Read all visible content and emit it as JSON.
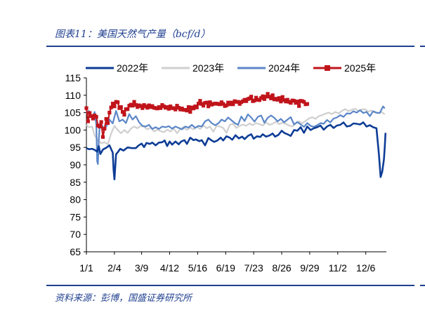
{
  "header": {
    "title": "图表11：美国天然气产量（bcf/d）"
  },
  "footer": {
    "source": "资料来源：彭博，国盛证券研究所"
  },
  "colors": {
    "accent": "#1f3f8f"
  },
  "chart_data": {
    "type": "line",
    "title": "",
    "xlabel": "",
    "ylabel": "",
    "x_ticks": [
      "1/1",
      "2/4",
      "3/9",
      "4/12",
      "5/16",
      "6/19",
      "7/23",
      "8/26",
      "9/29",
      "11/2",
      "12/6"
    ],
    "x_tick_days": [
      0,
      34,
      67,
      101,
      135,
      169,
      203,
      237,
      271,
      305,
      339
    ],
    "xlim": [
      0,
      364
    ],
    "ylim": [
      65,
      115
    ],
    "y_ticks": [
      65,
      70,
      75,
      80,
      85,
      90,
      95,
      100,
      105,
      110,
      115
    ],
    "grid": false,
    "legend_position": "top",
    "series": [
      {
        "name": "2022年",
        "color": "#0e3d96",
        "marker": "none",
        "x": [
          0,
          3,
          7,
          10,
          13,
          15,
          17,
          20,
          24,
          28,
          32,
          33,
          34,
          36,
          38,
          41,
          45,
          50,
          55,
          60,
          63,
          67,
          70,
          73,
          77,
          80,
          84,
          88,
          92,
          95,
          98,
          101,
          104,
          108,
          112,
          115,
          119,
          122,
          126,
          130,
          133,
          137,
          140,
          144,
          148,
          152,
          155,
          159,
          163,
          166,
          170,
          174,
          177,
          181,
          185,
          189,
          192,
          196,
          200,
          203,
          207,
          211,
          214,
          218,
          222,
          226,
          229,
          233,
          237,
          240,
          244,
          248,
          252,
          256,
          260,
          264,
          268,
          272,
          276,
          280,
          284,
          288,
          292,
          296,
          300,
          304,
          308,
          312,
          316,
          320,
          324,
          328,
          332,
          336,
          340,
          344,
          348,
          352,
          355,
          357,
          359,
          361,
          362,
          363
        ],
        "y": [
          94.8,
          94.5,
          94.6,
          94.3,
          93.8,
          95.4,
          93.1,
          94.4,
          94.9,
          95.6,
          93.5,
          88.5,
          85.8,
          93.0,
          93.6,
          94.6,
          94.1,
          95.0,
          94.8,
          94.8,
          95.5,
          96.1,
          95.1,
          96.3,
          96.0,
          96.4,
          95.6,
          96.4,
          96.5,
          97.0,
          95.4,
          96.7,
          95.8,
          96.7,
          95.9,
          96.7,
          97.1,
          96.0,
          97.8,
          97.1,
          97.3,
          96.8,
          97.1,
          95.6,
          97.7,
          97.0,
          96.6,
          97.0,
          97.8,
          97.0,
          98.2,
          97.8,
          97.2,
          98.5,
          97.6,
          98.1,
          97.4,
          98.3,
          98.8,
          97.5,
          98.2,
          98.0,
          98.8,
          98.1,
          98.4,
          99.0,
          98.1,
          98.6,
          99.8,
          99.2,
          98.8,
          98.3,
          100.0,
          99.8,
          100.8,
          99.2,
          101.0,
          100.0,
          100.5,
          100.8,
          101.3,
          100.1,
          101.0,
          101.5,
          100.6,
          101.3,
          101.5,
          102.2,
          101.0,
          101.2,
          101.9,
          101.8,
          101.6,
          102.2,
          101.0,
          101.4,
          100.8,
          100.5,
          93.0,
          86.5,
          88.0,
          91.5,
          95.0,
          99.2
        ]
      },
      {
        "name": "2023年",
        "color": "#cfcfcf",
        "marker": "none",
        "x": [
          0,
          3,
          7,
          10,
          14,
          18,
          22,
          26,
          30,
          34,
          38,
          42,
          46,
          50,
          54,
          58,
          62,
          66,
          70,
          74,
          78,
          82,
          86,
          90,
          94,
          98,
          102,
          106,
          110,
          114,
          118,
          122,
          126,
          130,
          134,
          138,
          142,
          146,
          150,
          154,
          158,
          162,
          166,
          170,
          174,
          178,
          182,
          186,
          190,
          194,
          198,
          202,
          206,
          210,
          214,
          218,
          222,
          226,
          230,
          234,
          238,
          242,
          246,
          250,
          254,
          258,
          262,
          266,
          270,
          274,
          278,
          282,
          286,
          290,
          294,
          298,
          302,
          306,
          310,
          314,
          318,
          322,
          326,
          330,
          334,
          338,
          342,
          346,
          350,
          354,
          358,
          362
        ],
        "y": [
          101.5,
          100.8,
          101.0,
          98.5,
          97.0,
          96.2,
          96.5,
          95.9,
          99.0,
          101.2,
          100.0,
          99.1,
          100.0,
          99.2,
          100.4,
          101.0,
          100.5,
          101.2,
          100.9,
          100.2,
          100.7,
          99.6,
          100.1,
          99.7,
          99.4,
          100.1,
          99.6,
          100.4,
          99.1,
          100.3,
          100.9,
          100.0,
          100.7,
          100.2,
          101.0,
          100.3,
          101.3,
          100.5,
          101.0,
          99.5,
          101.2,
          101.0,
          100.6,
          99.2,
          101.5,
          101.8,
          100.6,
          101.2,
          101.6,
          101.2,
          101.9,
          101.4,
          102.0,
          101.7,
          101.3,
          102.2,
          101.5,
          101.8,
          102.4,
          101.7,
          102.1,
          101.8,
          101.3,
          101.0,
          102.0,
          102.5,
          101.9,
          102.6,
          103.3,
          103.7,
          103.2,
          104.0,
          104.3,
          104.7,
          105.0,
          104.6,
          105.2,
          104.8,
          105.5,
          106.0,
          105.4,
          105.8,
          106.1,
          105.5,
          105.9,
          106.0,
          105.3,
          105.6,
          105.0,
          104.8,
          105.2,
          104.5
        ]
      },
      {
        "name": "2024年",
        "color": "#5b86c8",
        "marker": "none",
        "x": [
          0,
          3,
          7,
          10,
          12,
          13,
          14,
          15,
          16,
          17,
          19,
          21,
          24,
          28,
          32,
          36,
          40,
          44,
          48,
          52,
          56,
          60,
          64,
          68,
          72,
          76,
          80,
          84,
          88,
          92,
          96,
          100,
          104,
          108,
          112,
          116,
          120,
          124,
          128,
          132,
          136,
          140,
          144,
          148,
          152,
          156,
          160,
          164,
          168,
          172,
          176,
          180,
          184,
          188,
          192,
          196,
          200,
          204,
          208,
          212,
          216,
          220,
          224,
          228,
          232,
          236,
          240,
          244,
          248,
          252,
          256,
          260,
          264,
          268,
          272,
          276,
          280,
          284,
          288,
          292,
          296,
          300,
          304,
          308,
          312,
          316,
          320,
          324,
          328,
          332,
          336,
          340,
          344,
          348,
          352,
          356,
          360,
          362
        ],
        "y": [
          104.5,
          105.5,
          103.2,
          105.2,
          101.5,
          91.0,
          90.2,
          97.0,
          100.8,
          102.5,
          101.3,
          100.4,
          101.0,
          103.0,
          101.9,
          105.5,
          102.5,
          103.0,
          102.0,
          104.6,
          103.0,
          104.0,
          102.2,
          101.2,
          101.0,
          101.5,
          100.3,
          100.8,
          100.3,
          101.0,
          100.8,
          101.1,
          100.4,
          101.0,
          100.6,
          100.2,
          101.0,
          100.7,
          101.5,
          100.6,
          101.2,
          101.0,
          102.5,
          103.0,
          102.0,
          101.4,
          101.9,
          103.0,
          102.5,
          103.6,
          102.8,
          102.0,
          101.5,
          103.9,
          102.6,
          104.5,
          103.6,
          102.4,
          103.8,
          104.2,
          102.1,
          103.5,
          104.2,
          103.5,
          102.5,
          103.2,
          102.2,
          103.0,
          103.7,
          101.6,
          102.3,
          101.6,
          100.9,
          102.0,
          101.2,
          100.9,
          101.4,
          102.0,
          101.8,
          102.9,
          102.2,
          103.3,
          103.6,
          104.3,
          103.8,
          104.8,
          104.7,
          105.4,
          105.0,
          105.7,
          104.9,
          105.2,
          104.0,
          105.4,
          105.0,
          104.9,
          106.8,
          106.2
        ]
      },
      {
        "name": "2025年",
        "color": "#c0141b",
        "marker": "square",
        "x": [
          0,
          2,
          4,
          6,
          8,
          10,
          12,
          14,
          16,
          18,
          20,
          22,
          24,
          26,
          28,
          30,
          32,
          34,
          36,
          38,
          40,
          42,
          44,
          46,
          48,
          50,
          52,
          54,
          56,
          58,
          60,
          62,
          64,
          66,
          68,
          70,
          72,
          74,
          76,
          78,
          80,
          82,
          84,
          86,
          88,
          90,
          92,
          94,
          96,
          98,
          100,
          102,
          104,
          106,
          108,
          110,
          112,
          114,
          116,
          118,
          120,
          122,
          124,
          126,
          128,
          130,
          132,
          134,
          136,
          138,
          140,
          142,
          144,
          146,
          148,
          150,
          152,
          154,
          156,
          158,
          160,
          162,
          164,
          166,
          168,
          170,
          172,
          174,
          176,
          178,
          180,
          182,
          184,
          186,
          188,
          190,
          192,
          194,
          196,
          198,
          200,
          202,
          204,
          206,
          208,
          210,
          212,
          214,
          216,
          218,
          220,
          222,
          224,
          226,
          228,
          230,
          232,
          234,
          236,
          238,
          240,
          242,
          244,
          246,
          248,
          250,
          252,
          254,
          256,
          258,
          260,
          262,
          264,
          266,
          268
        ],
        "y": [
          106.3,
          102.5,
          104.9,
          104.0,
          103.3,
          104.2,
          103.8,
          101.3,
          101.0,
          102.3,
          98.0,
          100.4,
          103.2,
          102.0,
          105.0,
          106.5,
          107.6,
          106.8,
          108.1,
          108.0,
          106.3,
          106.6,
          105.2,
          104.4,
          106.0,
          106.0,
          107.0,
          107.3,
          107.0,
          108.1,
          107.2,
          106.6,
          107.1,
          106.9,
          106.3,
          107.2,
          106.8,
          106.4,
          107.1,
          106.6,
          106.9,
          106.4,
          106.3,
          106.2,
          106.6,
          106.3,
          107.2,
          106.8,
          106.4,
          106.6,
          106.1,
          106.8,
          106.3,
          106.3,
          105.9,
          107.0,
          106.4,
          105.9,
          106.2,
          105.8,
          105.8,
          105.6,
          106.6,
          105.2,
          106.5,
          106.2,
          106.8,
          106.5,
          107.6,
          108.4,
          107.5,
          107.0,
          107.8,
          107.9,
          106.8,
          108.0,
          107.3,
          107.5,
          107.6,
          107.6,
          107.5,
          107.4,
          108.0,
          107.5,
          106.9,
          107.1,
          107.9,
          107.4,
          107.9,
          107.4,
          108.3,
          108.1,
          108.1,
          107.5,
          108.0,
          108.3,
          108.7,
          108.3,
          108.9,
          109.1,
          109.6,
          108.3,
          108.5,
          109.3,
          108.7,
          108.6,
          109.2,
          109.7,
          108.9,
          109.6,
          110.4,
          109.6,
          109.1,
          110.0,
          108.8,
          109.0,
          108.7,
          109.2,
          108.2,
          109.5,
          108.6,
          108.2,
          108.7,
          108.1,
          107.8,
          108.5,
          108.4,
          107.8,
          108.2,
          106.9,
          108.4,
          108.3,
          108.1,
          107.4,
          107.5
        ]
      }
    ]
  }
}
